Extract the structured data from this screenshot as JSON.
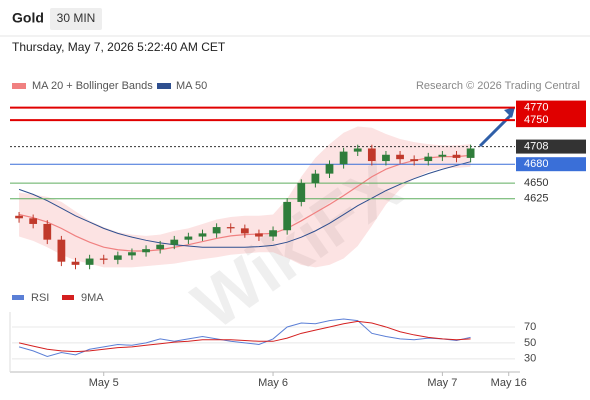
{
  "header": {
    "symbol": "Gold",
    "timeframe": "30 MIN",
    "timestamp": "Thursday, May 7, 2026 5:22:40 AM CET",
    "credit": "Research © 2026 Trading Central"
  },
  "watermark": "WikiFX",
  "chart_data": [
    {
      "type": "candlestick",
      "up_color": "#2f7d3b",
      "down_color": "#c0392b",
      "xlim": [
        0,
        36
      ],
      "ylim": [
        4480,
        4790
      ],
      "x": [
        0.5,
        1.5,
        2.5,
        3.5,
        4.5,
        5.5,
        6.5,
        7.5,
        8.5,
        9.5,
        10.5,
        11.5,
        12.5,
        13.5,
        14.5,
        15.5,
        16.5,
        17.5,
        18.5,
        19.5,
        20.5,
        21.5,
        22.5,
        23.5,
        24.5,
        25.5,
        26.5,
        27.5,
        28.5,
        29.5,
        30.5,
        31.5,
        32.5
      ],
      "open": [
        4598,
        4594,
        4585,
        4560,
        4525,
        4520,
        4530,
        4528,
        4535,
        4540,
        4545,
        4552,
        4560,
        4565,
        4570,
        4580,
        4578,
        4570,
        4565,
        4575,
        4620,
        4650,
        4665,
        4680,
        4700,
        4705,
        4685,
        4695,
        4688,
        4685,
        4692,
        4695,
        4690
      ],
      "high": [
        4604,
        4600,
        4591,
        4566,
        4531,
        4536,
        4536,
        4541,
        4546,
        4551,
        4558,
        4566,
        4571,
        4576,
        4586,
        4586,
        4584,
        4576,
        4581,
        4626,
        4656,
        4671,
        4686,
        4706,
        4711,
        4711,
        4701,
        4701,
        4694,
        4698,
        4701,
        4701,
        4711
      ],
      "low": [
        4587,
        4578,
        4553,
        4518,
        4513,
        4513,
        4521,
        4521,
        4528,
        4533,
        4538,
        4545,
        4553,
        4558,
        4563,
        4571,
        4563,
        4558,
        4558,
        4568,
        4613,
        4643,
        4658,
        4673,
        4693,
        4678,
        4678,
        4681,
        4678,
        4678,
        4685,
        4683,
        4683
      ],
      "close": [
        4594,
        4585,
        4560,
        4525,
        4520,
        4530,
        4528,
        4535,
        4540,
        4545,
        4552,
        4560,
        4565,
        4570,
        4580,
        4578,
        4570,
        4565,
        4575,
        4620,
        4650,
        4665,
        4680,
        4700,
        4705,
        4685,
        4695,
        4688,
        4685,
        4692,
        4695,
        4690,
        4705
      ],
      "bands": {
        "name": "MA 20 + Bollinger Bands",
        "color": "#f08080",
        "upper": [
          4635,
          4632,
          4628,
          4620,
          4605,
          4590,
          4580,
          4572,
          4568,
          4566,
          4568,
          4574,
          4578,
          4585,
          4592,
          4596,
          4598,
          4598,
          4600,
          4625,
          4660,
          4690,
          4712,
          4730,
          4740,
          4738,
          4728,
          4720,
          4715,
          4712,
          4710,
          4710,
          4712
        ],
        "values": [
          4600,
          4595,
          4588,
          4578,
          4566,
          4556,
          4548,
          4544,
          4542,
          4542,
          4544,
          4548,
          4552,
          4557,
          4562,
          4566,
          4568,
          4569,
          4570,
          4578,
          4590,
          4603,
          4616,
          4630,
          4645,
          4660,
          4672,
          4680,
          4686,
          4690,
          4692,
          4692,
          4694
        ],
        "lower": [
          4565,
          4558,
          4548,
          4536,
          4527,
          4522,
          4516,
          4516,
          4516,
          4518,
          4520,
          4522,
          4526,
          4529,
          4532,
          4536,
          4538,
          4540,
          4540,
          4531,
          4520,
          4516,
          4520,
          4530,
          4550,
          4582,
          4616,
          4640,
          4657,
          4668,
          4674,
          4674,
          4676
        ]
      },
      "series": [
        {
          "name": "MA 50",
          "color": "#2f4f8f",
          "values": [
            4640,
            4632,
            4622,
            4610,
            4598,
            4588,
            4578,
            4570,
            4564,
            4559,
            4555,
            4552,
            4550,
            4548,
            4548,
            4548,
            4548,
            4549,
            4551,
            4556,
            4564,
            4574,
            4586,
            4600,
            4614,
            4626,
            4638,
            4648,
            4657,
            4665,
            4672,
            4678,
            4684
          ]
        }
      ],
      "levels": [
        {
          "value": 4770,
          "color": "#e00000",
          "style": "box"
        },
        {
          "value": 4750,
          "color": "#e00000",
          "style": "box"
        },
        {
          "value": 4708,
          "color": "#333333",
          "style": "box"
        },
        {
          "value": 4680,
          "color": "#3a6fd8",
          "style": "box"
        },
        {
          "value": 4650,
          "color": "#5fae5f",
          "style": "text"
        },
        {
          "value": 4625,
          "color": "#5fae5f",
          "style": "text"
        }
      ],
      "xticks": [
        {
          "value": 6.5,
          "label": "May 5"
        },
        {
          "value": 18.5,
          "label": "May 6"
        },
        {
          "value": 30.5,
          "label": "May 7"
        },
        {
          "value": 35.2,
          "label": "May 16"
        }
      ]
    },
    {
      "type": "line",
      "xlim": [
        0,
        36
      ],
      "ylim": [
        16,
        85
      ],
      "yticks": [
        70,
        50,
        30
      ],
      "x": [
        0.5,
        1.5,
        2.5,
        3.5,
        4.5,
        5.5,
        6.5,
        7.5,
        8.5,
        9.5,
        10.5,
        11.5,
        12.5,
        13.5,
        14.5,
        15.5,
        16.5,
        17.5,
        18.5,
        19.5,
        20.5,
        21.5,
        22.5,
        23.5,
        24.5,
        25.5,
        26.5,
        27.5,
        28.5,
        29.5,
        30.5,
        31.5,
        32.5
      ],
      "series": [
        {
          "name": "RSI",
          "color": "#5b7fd6",
          "values": [
            45,
            40,
            33,
            38,
            35,
            42,
            45,
            48,
            47,
            50,
            55,
            52,
            55,
            58,
            55,
            52,
            50,
            48,
            55,
            70,
            75,
            74,
            78,
            80,
            78,
            62,
            58,
            55,
            54,
            56,
            55,
            53,
            57
          ]
        },
        {
          "name": "9MA",
          "color": "#d42020",
          "values": [
            50,
            46,
            42,
            40,
            39,
            40,
            42,
            44,
            45,
            47,
            49,
            51,
            52,
            54,
            54,
            54,
            53,
            52,
            52,
            56,
            62,
            66,
            70,
            74,
            77,
            75,
            70,
            64,
            60,
            57,
            55,
            54,
            55
          ]
        }
      ]
    }
  ]
}
